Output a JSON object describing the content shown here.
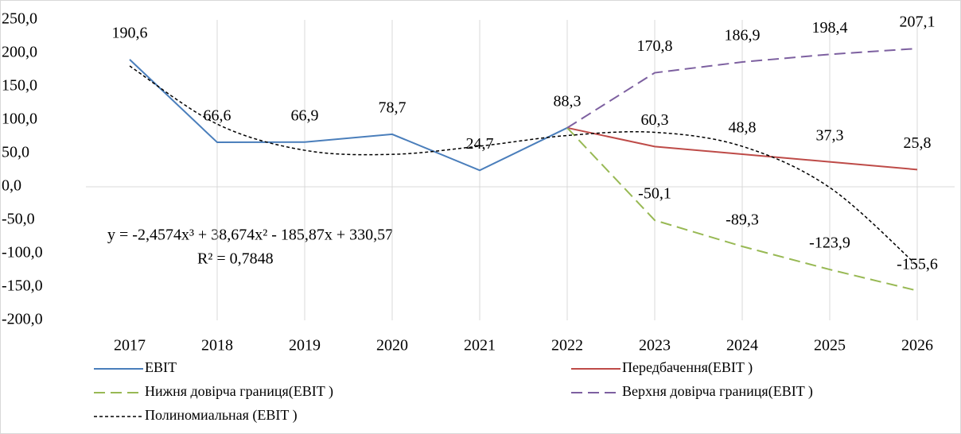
{
  "chart_data": {
    "type": "line",
    "categories": [
      "2017",
      "2018",
      "2019",
      "2020",
      "2021",
      "2022",
      "2023",
      "2024",
      "2025",
      "2026"
    ],
    "ylim": [
      -200,
      250
    ],
    "yticks": [
      {
        "value": -200,
        "label": "-200,0"
      },
      {
        "value": -150,
        "label": "-150,0"
      },
      {
        "value": -100,
        "label": "-100,0"
      },
      {
        "value": -50,
        "label": "-50,0"
      },
      {
        "value": 0,
        "label": "0,0"
      },
      {
        "value": 50,
        "label": "50,0"
      },
      {
        "value": 100,
        "label": "100,0"
      },
      {
        "value": 150,
        "label": "150,0"
      },
      {
        "value": 200,
        "label": "200,0"
      },
      {
        "value": 250,
        "label": "250,0"
      }
    ],
    "grid": true,
    "legend": "bottom",
    "series": [
      {
        "name": "EBIT",
        "color": "#4a7ebb",
        "style": "solid",
        "values": [
          190.6,
          66.6,
          66.9,
          78.7,
          24.7,
          88.3,
          null,
          null,
          null,
          null
        ],
        "value_labels": [
          "190,6",
          "66,6",
          "66,9",
          "78,7",
          "24,7",
          "88,3",
          null,
          null,
          null,
          null
        ]
      },
      {
        "name": "Передбачення(EBIT )",
        "color": "#be4b48",
        "style": "solid",
        "values": [
          null,
          null,
          null,
          null,
          null,
          88.3,
          60.3,
          48.8,
          37.3,
          25.8
        ],
        "value_labels": [
          null,
          null,
          null,
          null,
          null,
          null,
          "60,3",
          "48,8",
          "37,3",
          "25,8"
        ]
      },
      {
        "name": "Нижня довірча границя(EBIT )",
        "color": "#98b954",
        "style": "dashed",
        "values": [
          null,
          null,
          null,
          null,
          null,
          88.3,
          -50.1,
          -89.3,
          -123.9,
          -155.6
        ],
        "value_labels": [
          null,
          null,
          null,
          null,
          null,
          null,
          "-50,1",
          "-89,3",
          "-123,9",
          "-155,6"
        ]
      },
      {
        "name": "Верхня довірча границя(EBIT )",
        "color": "#7d60a0",
        "style": "dashed",
        "values": [
          null,
          null,
          null,
          null,
          null,
          88.3,
          170.8,
          186.9,
          198.4,
          207.1
        ],
        "value_labels": [
          null,
          null,
          null,
          null,
          null,
          null,
          "170,8",
          "186,9",
          "198,4",
          "207,1"
        ]
      },
      {
        "name": "Полиномиальная (EBIT )",
        "color": "#000000",
        "style": "dotted",
        "smooth": true,
        "values": [
          180.9,
          93.9,
          54.7,
          48.6,
          60.9,
          76.8,
          81.6,
          60.6,
          -1.1,
          -118.1
        ]
      }
    ],
    "annotations": [
      "y = -2,4574x³ + 38,674x² - 185,87x + 330,57",
      "R² = 0,7848"
    ]
  }
}
